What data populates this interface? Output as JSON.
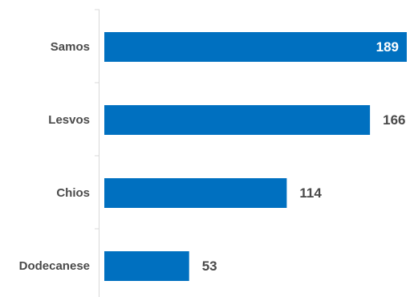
{
  "chart_data": {
    "type": "bar",
    "orientation": "horizontal",
    "title": "",
    "xlabel": "",
    "ylabel": "",
    "categories": [
      "Samos",
      "Lesvos",
      "Chios",
      "Dodecanese"
    ],
    "values": [
      189,
      166,
      114,
      53
    ],
    "xlim": [
      0,
      189
    ],
    "grid": false,
    "legend": "none",
    "colors": {
      "bar": "#0070c0",
      "axis": "#d9d9d9",
      "category_text": "#4a4a4a",
      "value_text_outside": "#4a4a4a",
      "value_text_inside": "#ffffff"
    }
  }
}
